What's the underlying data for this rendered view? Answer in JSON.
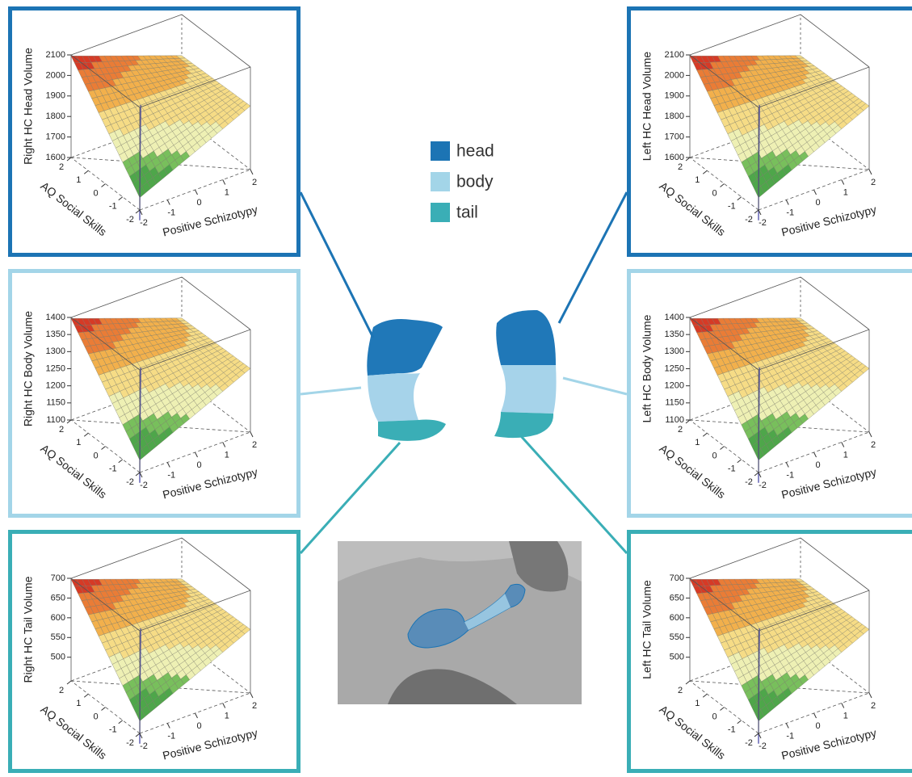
{
  "legend": [
    {
      "name": "head",
      "color": "#1c74b4"
    },
    {
      "name": "body",
      "color": "#a3d5e8"
    },
    {
      "name": "tail",
      "color": "#3aaeb6"
    }
  ],
  "chart_data": [
    {
      "type": "surface",
      "color": "#1c74b4",
      "z_label": "Right HC Head Volume",
      "x_label": "Positive Schizotypy",
      "y_label": "AQ Social Skills",
      "xlim": [
        -2,
        2
      ],
      "ylim": [
        -2,
        2
      ],
      "zlim": [
        1600,
        2100
      ],
      "xticks": [
        -2,
        -1,
        0,
        1,
        2
      ],
      "yticks": [
        -2,
        -1,
        0,
        1,
        2
      ],
      "zticks": [
        1600,
        1700,
        1800,
        1900,
        2000,
        2100
      ]
    },
    {
      "type": "surface",
      "color": "#a3d5e8",
      "z_label": "Right HC Body Volume",
      "x_label": "Positive Schizotypy",
      "y_label": "AQ Social Skills",
      "xlim": [
        -2,
        2
      ],
      "ylim": [
        -2,
        2
      ],
      "zlim": [
        1100,
        1400
      ],
      "xticks": [
        -2,
        -1,
        0,
        1,
        2
      ],
      "yticks": [
        -2,
        -1,
        0,
        1,
        2
      ],
      "zticks": [
        1100,
        1150,
        1200,
        1250,
        1300,
        1350,
        1400
      ]
    },
    {
      "type": "surface",
      "color": "#3aaeb6",
      "z_label": "Right HC Tail Volume",
      "x_label": "Positive Schizotypy",
      "y_label": "AQ Social Skills",
      "xlim": [
        -2,
        2
      ],
      "ylim": [
        -2,
        2
      ],
      "zlim": [
        440,
        700
      ],
      "xticks": [
        -2,
        -1,
        0,
        1,
        2
      ],
      "yticks": [
        -2,
        -1,
        0,
        1,
        2
      ],
      "zticks": [
        500,
        550,
        600,
        650,
        700
      ]
    },
    {
      "type": "surface",
      "color": "#1c74b4",
      "z_label": "Left HC Head Volume",
      "x_label": "Positive Schizotypy",
      "y_label": "AQ Social Skills",
      "xlim": [
        -2,
        2
      ],
      "ylim": [
        -2,
        2
      ],
      "zlim": [
        1600,
        2100
      ],
      "xticks": [
        -2,
        -1,
        0,
        1,
        2
      ],
      "yticks": [
        -2,
        -1,
        0,
        1,
        2
      ],
      "zticks": [
        1600,
        1700,
        1800,
        1900,
        2000,
        2100
      ]
    },
    {
      "type": "surface",
      "color": "#a3d5e8",
      "z_label": "Left HC Body Volume",
      "x_label": "Positive Schizotypy",
      "y_label": "AQ Social Skills",
      "xlim": [
        -2,
        2
      ],
      "ylim": [
        -2,
        2
      ],
      "zlim": [
        1100,
        1400
      ],
      "xticks": [
        -2,
        -1,
        0,
        1,
        2
      ],
      "yticks": [
        -2,
        -1,
        0,
        1,
        2
      ],
      "zticks": [
        1100,
        1150,
        1200,
        1250,
        1300,
        1350,
        1400
      ]
    },
    {
      "type": "surface",
      "color": "#3aaeb6",
      "z_label": "Left HC Tail Volume",
      "x_label": "Positive Schizotypy",
      "y_label": "AQ Social Skills",
      "xlim": [
        -2,
        2
      ],
      "ylim": [
        -2,
        2
      ],
      "zlim": [
        440,
        700
      ],
      "xticks": [
        -2,
        -1,
        0,
        1,
        2
      ],
      "yticks": [
        -2,
        -1,
        0,
        1,
        2
      ],
      "zticks": [
        500,
        550,
        600,
        650,
        700
      ]
    }
  ]
}
